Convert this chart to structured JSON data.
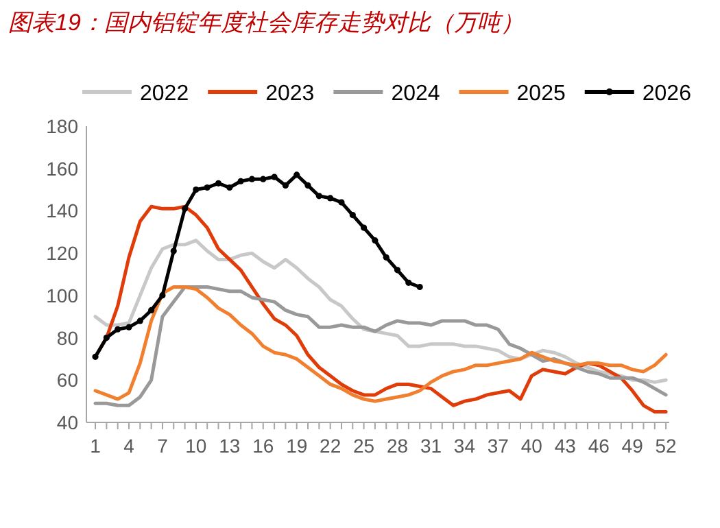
{
  "chart_data": {
    "type": "line",
    "title": "图表19：国内铝锭年度社会库存走势对比（万吨）",
    "xlim": [
      0.2,
      52.3
    ],
    "ylim": [
      40,
      180
    ],
    "yticks": [
      40,
      60,
      80,
      100,
      120,
      140,
      160,
      180
    ],
    "xticks": [
      1,
      {
        "value": 2,
        "label": null
      },
      {
        "value": 3,
        "label": null
      },
      4,
      {
        "value": 5,
        "label": null
      },
      {
        "value": 6,
        "label": null
      },
      7,
      {
        "value": 8,
        "label": null
      },
      {
        "value": 9,
        "label": null
      },
      10,
      {
        "value": 11,
        "label": null
      },
      {
        "value": 12,
        "label": null
      },
      13,
      {
        "value": 14,
        "label": null
      },
      {
        "value": 15,
        "label": null
      },
      16,
      {
        "value": 17,
        "label": null
      },
      {
        "value": 18,
        "label": null
      },
      19,
      {
        "value": 20,
        "label": null
      },
      {
        "value": 21,
        "label": null
      },
      22,
      {
        "value": 23,
        "label": null
      },
      {
        "value": 24,
        "label": null
      },
      25,
      {
        "value": 26,
        "label": null
      },
      {
        "value": 27,
        "label": null
      },
      28,
      {
        "value": 29,
        "label": null
      },
      {
        "value": 30,
        "label": null
      },
      31,
      {
        "value": 32,
        "label": null
      },
      {
        "value": 33,
        "label": null
      },
      34,
      {
        "value": 35,
        "label": null
      },
      {
        "value": 36,
        "label": null
      },
      37,
      {
        "value": 38,
        "label": null
      },
      {
        "value": 39,
        "label": null
      },
      40,
      {
        "value": 41,
        "label": null
      },
      {
        "value": 42,
        "label": null
      },
      43,
      {
        "value": 44,
        "label": null
      },
      {
        "value": 45,
        "label": null
      },
      46,
      {
        "value": 47,
        "label": null
      },
      {
        "value": 48,
        "label": null
      },
      49,
      {
        "value": 50,
        "label": null
      },
      {
        "value": 51,
        "label": null
      },
      52
    ],
    "x": [
      1,
      2,
      3,
      4,
      5,
      6,
      7,
      8,
      9,
      10,
      11,
      12,
      13,
      14,
      15,
      16,
      17,
      18,
      19,
      20,
      21,
      22,
      23,
      24,
      25,
      26,
      27,
      28,
      29,
      30,
      31,
      32,
      33,
      34,
      35,
      36,
      37,
      38,
      39,
      40,
      41,
      42,
      43,
      44,
      45,
      46,
      47,
      48,
      49,
      50,
      51,
      52
    ],
    "grid": false,
    "legend": "top",
    "series": [
      {
        "name": "2022",
        "color": "#c8c8c8",
        "values": [
          90,
          86,
          86,
          87,
          100,
          113,
          122,
          124,
          124,
          126,
          121,
          117,
          117,
          119,
          120,
          116,
          113,
          117,
          113,
          108,
          104,
          98,
          95,
          89,
          84,
          83,
          82,
          81,
          76,
          76,
          77,
          77,
          77,
          76,
          76,
          75,
          74,
          71,
          70,
          72,
          74,
          73,
          71,
          68,
          66,
          64,
          63,
          62,
          60,
          60,
          59,
          60
        ]
      },
      {
        "name": "2023",
        "color": "#e03c0a",
        "values": [
          71,
          80,
          95,
          118,
          135,
          142,
          141,
          141,
          142,
          138,
          132,
          122,
          117,
          112,
          104,
          96,
          89,
          86,
          81,
          72,
          66,
          62,
          58,
          55,
          53,
          53,
          56,
          58,
          58,
          57,
          56,
          52,
          48,
          50,
          51,
          53,
          54,
          55,
          51,
          62,
          65,
          64,
          63,
          66,
          68,
          67,
          64,
          61,
          55,
          48,
          45,
          45
        ]
      },
      {
        "name": "2024",
        "color": "#999999",
        "values": [
          49,
          49,
          48,
          48,
          52,
          60,
          90,
          97,
          104,
          104,
          104,
          103,
          102,
          102,
          99,
          98,
          97,
          93,
          91,
          90,
          85,
          85,
          86,
          85,
          85,
          83,
          86,
          88,
          87,
          87,
          86,
          88,
          88,
          88,
          86,
          86,
          84,
          77,
          75,
          72,
          69,
          70,
          68,
          66,
          64,
          63,
          61,
          61,
          61,
          59,
          56,
          53
        ]
      },
      {
        "name": "2025",
        "color": "#f08030",
        "values": [
          55,
          53,
          51,
          54,
          68,
          88,
          101,
          104,
          104,
          103,
          99,
          94,
          91,
          86,
          82,
          76,
          73,
          72,
          70,
          66,
          62,
          58,
          56,
          53,
          51,
          50,
          51,
          52,
          53,
          55,
          59,
          62,
          64,
          65,
          67,
          67,
          68,
          69,
          70,
          73,
          71,
          69,
          68,
          67,
          68,
          68,
          67,
          67,
          65,
          64,
          67,
          72
        ]
      },
      {
        "name": "2026",
        "color": "#000000",
        "marker": "circle",
        "x": [
          1,
          2,
          3,
          4,
          5,
          6,
          7,
          8,
          9,
          10,
          11,
          12,
          13,
          14,
          15,
          16,
          17,
          18,
          19,
          20,
          21,
          22,
          23,
          24,
          25,
          26,
          27,
          28,
          29,
          30
        ],
        "values": [
          71,
          80,
          84,
          85,
          88,
          93,
          100,
          121,
          141,
          150,
          151,
          153,
          151,
          154,
          155,
          155,
          156,
          152,
          157,
          152,
          147,
          146,
          144,
          138,
          132,
          126,
          118,
          112,
          106,
          104
        ]
      }
    ]
  }
}
